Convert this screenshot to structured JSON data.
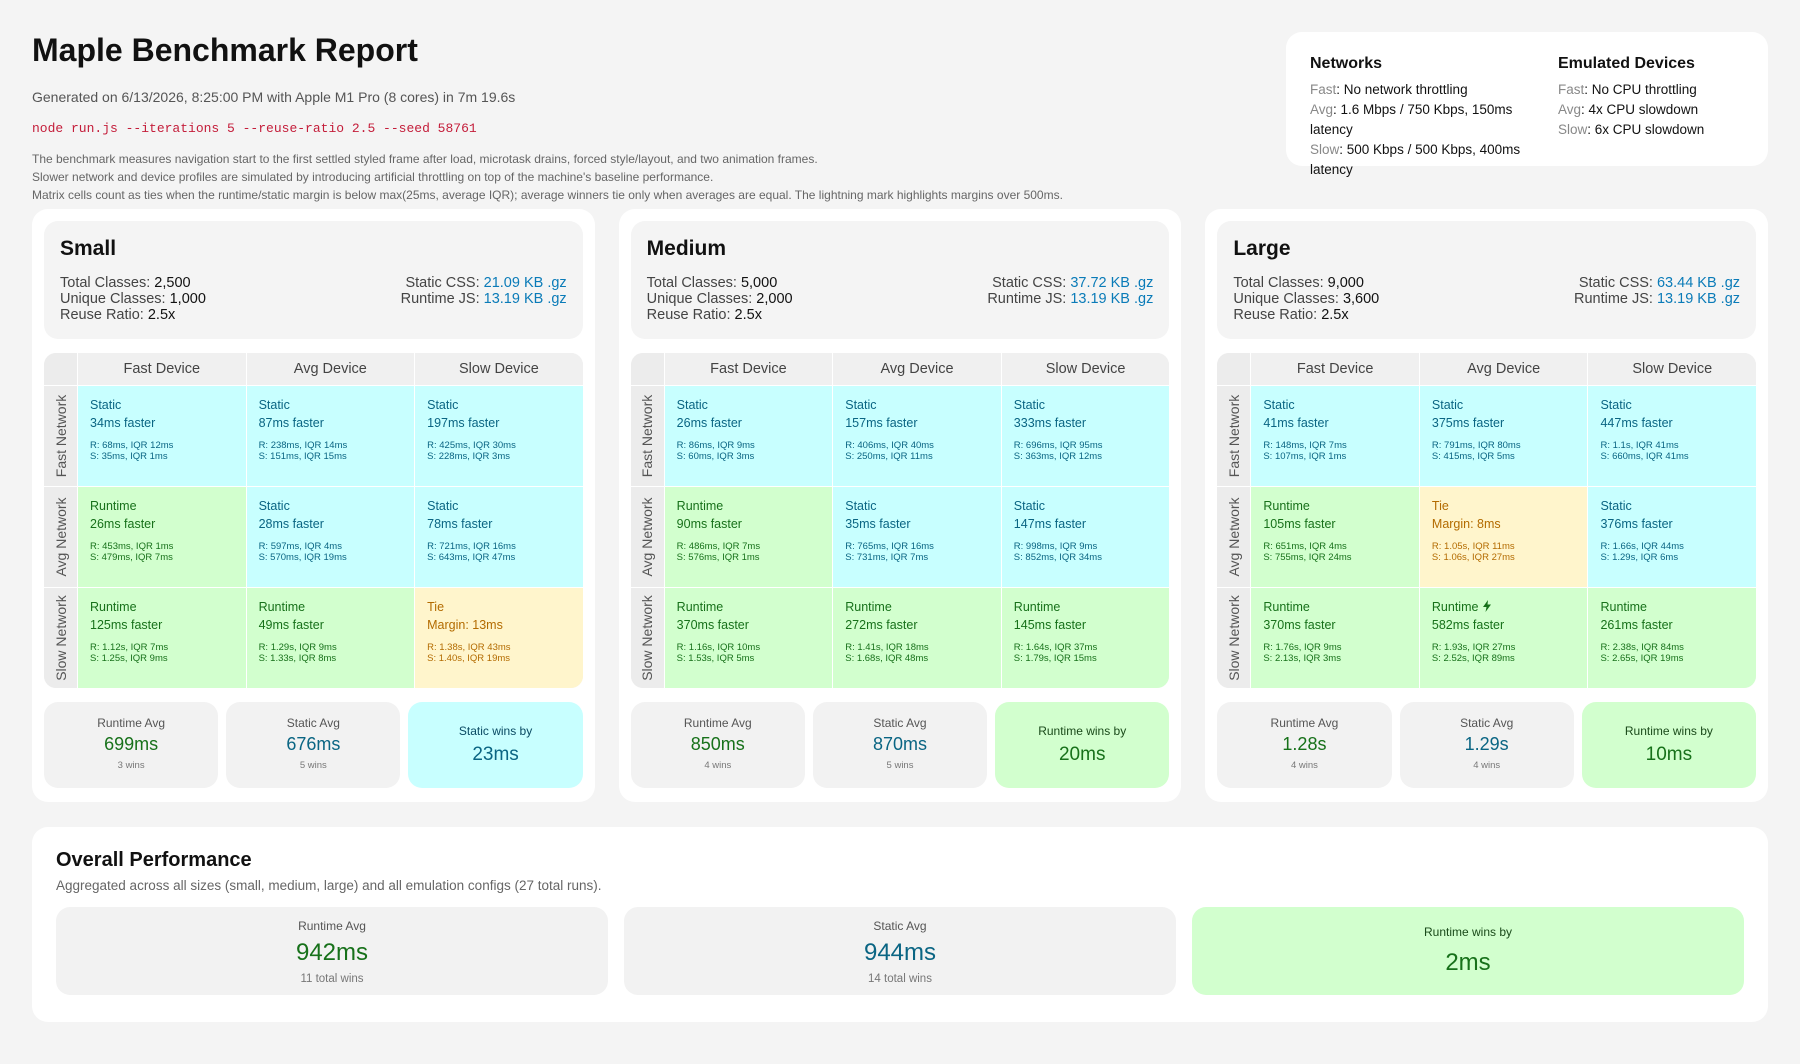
{
  "report": {
    "title": "Maple Benchmark Report",
    "generated": "Generated on 6/13/2026, 8:25:00 PM with Apple M1 Pro (8 cores) in 7m 19.6s",
    "command": "node run.js --iterations 5 --reuse-ratio 2.5 --seed 58761",
    "desc1": "The benchmark measures navigation start to the first settled styled frame after load, microtask drains, forced style/layout, and two animation frames.",
    "desc2": "Slower network and device profiles are simulated by introducing artificial throttling on top of the machine's baseline performance.",
    "desc3": "Matrix cells count as ties when the runtime/static margin is below max(25ms, average IQR); average winners tie only when averages are equal. The lightning mark highlights margins over 500ms."
  },
  "legend": {
    "networks": {
      "title": "Networks",
      "rows": [
        {
          "k": "Fast",
          "v": ": No network throttling"
        },
        {
          "k": "Avg",
          "v": ": 1.6 Mbps / 750 Kbps, 150ms latency"
        },
        {
          "k": "Slow",
          "v": ": 500 Kbps / 500 Kbps, 400ms latency"
        }
      ]
    },
    "devices": {
      "title": "Emulated Devices",
      "rows": [
        {
          "k": "Fast",
          "v": ": No CPU throttling"
        },
        {
          "k": "Avg",
          "v": ": 4x CPU slowdown"
        },
        {
          "k": "Slow",
          "v": ": 6x CPU slowdown"
        }
      ]
    }
  },
  "labels": {
    "total_classes": "Total Classes: ",
    "unique_classes": "Unique Classes: ",
    "reuse_ratio": "Reuse Ratio: ",
    "static_css": "Static CSS: ",
    "runtime_js": "Runtime JS: ",
    "cols": [
      "Fast Device",
      "Avg Device",
      "Slow Device"
    ],
    "rows": [
      "Fast Network",
      "Avg Network",
      "Slow Network"
    ],
    "runtime_avg": "Runtime Avg",
    "static_avg": "Static Avg"
  },
  "panels": [
    {
      "name": "Small",
      "total_classes": "2,500",
      "unique_classes": "1,000",
      "reuse_ratio": "2.5x",
      "static_css": "21.09 KB .gz",
      "runtime_js": "13.19 KB .gz",
      "cells": [
        [
          {
            "type": "static",
            "winner": "Static",
            "margin": "34ms faster",
            "r": "R: 68ms, IQR 12ms",
            "s": "S: 35ms, IQR 1ms"
          },
          {
            "type": "static",
            "winner": "Static",
            "margin": "87ms faster",
            "r": "R: 238ms, IQR 14ms",
            "s": "S: 151ms, IQR 15ms"
          },
          {
            "type": "static",
            "winner": "Static",
            "margin": "197ms faster",
            "r": "R: 425ms, IQR 30ms",
            "s": "S: 228ms, IQR 3ms"
          }
        ],
        [
          {
            "type": "runtime",
            "winner": "Runtime",
            "margin": "26ms faster",
            "r": "R: 453ms, IQR 1ms",
            "s": "S: 479ms, IQR 7ms"
          },
          {
            "type": "static",
            "winner": "Static",
            "margin": "28ms faster",
            "r": "R: 597ms, IQR 4ms",
            "s": "S: 570ms, IQR 19ms"
          },
          {
            "type": "static",
            "winner": "Static",
            "margin": "78ms faster",
            "r": "R: 721ms, IQR 16ms",
            "s": "S: 643ms, IQR 47ms"
          }
        ],
        [
          {
            "type": "runtime",
            "winner": "Runtime",
            "margin": "125ms faster",
            "r": "R: 1.12s, IQR 7ms",
            "s": "S: 1.25s, IQR 9ms"
          },
          {
            "type": "runtime",
            "winner": "Runtime",
            "margin": "49ms faster",
            "r": "R: 1.29s, IQR 9ms",
            "s": "S: 1.33s, IQR 8ms"
          },
          {
            "type": "tie",
            "winner": "Tie",
            "margin": "Margin: 13ms",
            "r": "R: 1.38s, IQR 43ms",
            "s": "S: 1.40s, IQR 19ms"
          }
        ]
      ],
      "runtime_avg": "699ms",
      "runtime_wins": "3 wins",
      "static_avg": "676ms",
      "static_wins": "5 wins",
      "winner_type": "static",
      "winner_label": "Static wins by",
      "winner_margin": "23ms"
    },
    {
      "name": "Medium",
      "total_classes": "5,000",
      "unique_classes": "2,000",
      "reuse_ratio": "2.5x",
      "static_css": "37.72 KB .gz",
      "runtime_js": "13.19 KB .gz",
      "cells": [
        [
          {
            "type": "static",
            "winner": "Static",
            "margin": "26ms faster",
            "r": "R: 86ms, IQR 9ms",
            "s": "S: 60ms, IQR 3ms"
          },
          {
            "type": "static",
            "winner": "Static",
            "margin": "157ms faster",
            "r": "R: 406ms, IQR 40ms",
            "s": "S: 250ms, IQR 11ms"
          },
          {
            "type": "static",
            "winner": "Static",
            "margin": "333ms faster",
            "r": "R: 696ms, IQR 95ms",
            "s": "S: 363ms, IQR 12ms"
          }
        ],
        [
          {
            "type": "runtime",
            "winner": "Runtime",
            "margin": "90ms faster",
            "r": "R: 486ms, IQR 7ms",
            "s": "S: 576ms, IQR 1ms"
          },
          {
            "type": "static",
            "winner": "Static",
            "margin": "35ms faster",
            "r": "R: 765ms, IQR 16ms",
            "s": "S: 731ms, IQR 7ms"
          },
          {
            "type": "static",
            "winner": "Static",
            "margin": "147ms faster",
            "r": "R: 998ms, IQR 9ms",
            "s": "S: 852ms, IQR 34ms"
          }
        ],
        [
          {
            "type": "runtime",
            "winner": "Runtime",
            "margin": "370ms faster",
            "r": "R: 1.16s, IQR 10ms",
            "s": "S: 1.53s, IQR 5ms"
          },
          {
            "type": "runtime",
            "winner": "Runtime",
            "margin": "272ms faster",
            "r": "R: 1.41s, IQR 18ms",
            "s": "S: 1.68s, IQR 48ms"
          },
          {
            "type": "runtime",
            "winner": "Runtime",
            "margin": "145ms faster",
            "r": "R: 1.64s, IQR 37ms",
            "s": "S: 1.79s, IQR 15ms"
          }
        ]
      ],
      "runtime_avg": "850ms",
      "runtime_wins": "4 wins",
      "static_avg": "870ms",
      "static_wins": "5 wins",
      "winner_type": "runtime",
      "winner_label": "Runtime wins by",
      "winner_margin": "20ms"
    },
    {
      "name": "Large",
      "total_classes": "9,000",
      "unique_classes": "3,600",
      "reuse_ratio": "2.5x",
      "static_css": "63.44 KB .gz",
      "runtime_js": "13.19 KB .gz",
      "cells": [
        [
          {
            "type": "static",
            "winner": "Static",
            "margin": "41ms faster",
            "r": "R: 148ms, IQR 7ms",
            "s": "S: 107ms, IQR 1ms"
          },
          {
            "type": "static",
            "winner": "Static",
            "margin": "375ms faster",
            "r": "R: 791ms, IQR 80ms",
            "s": "S: 415ms, IQR 5ms"
          },
          {
            "type": "static",
            "winner": "Static",
            "margin": "447ms faster",
            "r": "R: 1.1s, IQR 41ms",
            "s": "S: 660ms, IQR 41ms"
          }
        ],
        [
          {
            "type": "runtime",
            "winner": "Runtime",
            "margin": "105ms faster",
            "r": "R: 651ms, IQR 4ms",
            "s": "S: 755ms, IQR 24ms"
          },
          {
            "type": "tie",
            "winner": "Tie",
            "margin": "Margin: 8ms",
            "r": "R: 1.05s, IQR 11ms",
            "s": "S: 1.06s, IQR 27ms"
          },
          {
            "type": "static",
            "winner": "Static",
            "margin": "376ms faster",
            "r": "R: 1.66s, IQR 44ms",
            "s": "S: 1.29s, IQR 6ms"
          }
        ],
        [
          {
            "type": "runtime",
            "winner": "Runtime",
            "margin": "370ms faster",
            "r": "R: 1.76s, IQR 9ms",
            "s": "S: 2.13s, IQR 3ms"
          },
          {
            "type": "runtime",
            "winner": "Runtime",
            "margin": "582ms faster",
            "bolt": true,
            "r": "R: 1.93s, IQR 27ms",
            "s": "S: 2.52s, IQR 89ms"
          },
          {
            "type": "runtime",
            "winner": "Runtime",
            "margin": "261ms faster",
            "r": "R: 2.38s, IQR 84ms",
            "s": "S: 2.65s, IQR 19ms"
          }
        ]
      ],
      "runtime_avg": "1.28s",
      "runtime_wins": "4 wins",
      "static_avg": "1.29s",
      "static_wins": "4 wins",
      "winner_type": "runtime",
      "winner_label": "Runtime wins by",
      "winner_margin": "10ms"
    }
  ],
  "overall": {
    "title": "Overall Performance",
    "subtitle": "Aggregated across all sizes (small, medium, large) and all emulation configs (27 total runs).",
    "runtime_label": "Runtime Avg",
    "runtime_avg": "942ms",
    "runtime_wins": "11 total wins",
    "static_label": "Static Avg",
    "static_avg": "944ms",
    "static_wins": "14 total wins",
    "winner_label": "Runtime wins by",
    "winner_margin": "2ms"
  }
}
